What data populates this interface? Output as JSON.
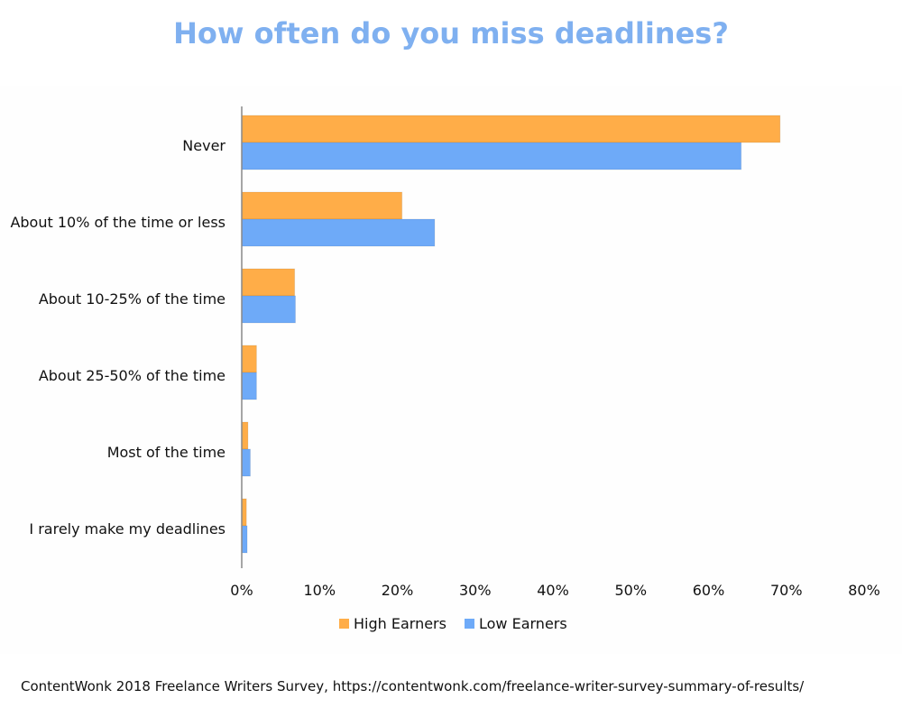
{
  "chart_data": {
    "type": "bar",
    "orientation": "horizontal",
    "title": "How often do you miss deadlines?",
    "categories": [
      "Never",
      "About 10% of the time or less",
      "About 10-25% of the time",
      "About 25-50% of the time",
      "Most of the time",
      "I rarely make my deadlines"
    ],
    "series": [
      {
        "name": "High Earners",
        "color": "#ffad48",
        "values": [
          69.2,
          20.6,
          6.8,
          1.9,
          0.8,
          0.6
        ]
      },
      {
        "name": "Low Earners",
        "color": "#6eaaf8",
        "values": [
          64.2,
          24.8,
          6.9,
          1.9,
          1.1,
          0.7
        ]
      }
    ],
    "xlim": [
      0,
      80
    ],
    "x_ticks": [
      "0%",
      "10%",
      "20%",
      "30%",
      "40%",
      "50%",
      "60%",
      "70%",
      "80%"
    ],
    "grid": false,
    "legend_position": "bottom"
  },
  "source_note": "ContentWonk 2018 Freelance Writers Survey, https://contentwonk.com/freelance-writer-survey-summary-of-results/"
}
